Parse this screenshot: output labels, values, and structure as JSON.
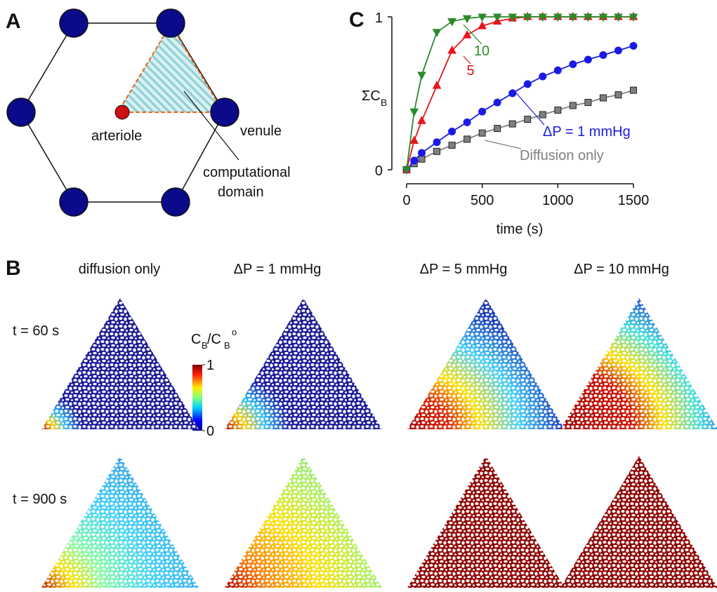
{
  "panel_a": {
    "label": "A",
    "arteriole": "arteriole",
    "venule": "venule",
    "domain_lines": [
      "computational",
      "domain"
    ]
  },
  "chart_data": {
    "panel": "C",
    "type": "line",
    "ylabel": "ΣC",
    "ylabel_sub": "B",
    "xlabel": "time (s)",
    "x": [
      0,
      50,
      100,
      200,
      300,
      400,
      500,
      600,
      700,
      800,
      900,
      1000,
      1100,
      1200,
      1300,
      1400,
      1500
    ],
    "xlim": [
      0,
      1500
    ],
    "ylim": [
      0,
      1
    ],
    "xticks": [
      0,
      500,
      1000,
      1500
    ],
    "yticks": [
      0,
      1
    ],
    "series": [
      {
        "name": "Diffusion only",
        "color": "#808080",
        "marker": "square",
        "values": [
          0,
          0.04,
          0.07,
          0.12,
          0.16,
          0.2,
          0.24,
          0.27,
          0.3,
          0.33,
          0.36,
          0.39,
          0.42,
          0.44,
          0.47,
          0.49,
          0.52
        ]
      },
      {
        "name": "ΔP = 1 mmHg",
        "color": "#1a1ae6",
        "marker": "circle",
        "values": [
          0,
          0.06,
          0.11,
          0.18,
          0.25,
          0.31,
          0.38,
          0.44,
          0.5,
          0.56,
          0.61,
          0.65,
          0.69,
          0.72,
          0.75,
          0.78,
          0.81
        ]
      },
      {
        "name": "5",
        "color": "#e8141c",
        "marker": "triangle-up",
        "values": [
          0,
          0.19,
          0.32,
          0.55,
          0.78,
          0.88,
          0.94,
          0.97,
          0.99,
          1,
          1,
          1,
          1,
          1,
          1,
          1,
          1
        ]
      },
      {
        "name": "10",
        "color": "#2a8a2a",
        "marker": "triangle-down",
        "values": [
          0,
          0.38,
          0.62,
          0.9,
          0.97,
          0.99,
          1,
          1,
          1,
          1,
          1,
          1,
          1,
          1,
          1,
          1,
          1
        ]
      }
    ]
  },
  "panel_b": {
    "label": "B",
    "columns": [
      "diffusion only",
      "ΔP = 1 mmHg",
      "ΔP = 5 mmHg",
      "ΔP = 10 mmHg"
    ],
    "rows": [
      "t = 60 s",
      "t = 900 s"
    ],
    "colorbar": {
      "label_parts": [
        "C",
        "B",
        "/C",
        "B",
        "o"
      ],
      "ticks": [
        0,
        1
      ]
    }
  }
}
